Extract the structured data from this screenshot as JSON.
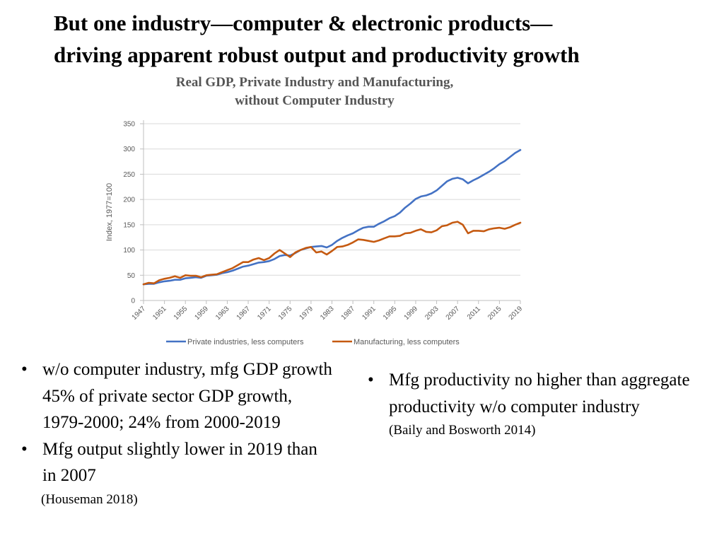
{
  "slide": {
    "title_line1": "But one industry—computer & electronic products—",
    "title_line2": "driving apparent robust output and productivity growth"
  },
  "chart_data": {
    "type": "line",
    "title_line1": "Real GDP, Private Industry and Manufacturing,",
    "title_line2": "without Computer Industry",
    "ylabel": "Index, 1977=100",
    "xlabel": "",
    "ylim": [
      0,
      350
    ],
    "yticks": [
      0,
      50,
      100,
      150,
      200,
      250,
      300,
      350
    ],
    "xlim": [
      1947,
      2019
    ],
    "xticks": [
      1947,
      1951,
      1955,
      1959,
      1963,
      1967,
      1971,
      1975,
      1979,
      1983,
      1987,
      1991,
      1995,
      1999,
      2003,
      2007,
      2011,
      2015,
      2019
    ],
    "legend_position": "bottom",
    "grid": true,
    "x": [
      1947,
      1948,
      1949,
      1950,
      1951,
      1952,
      1953,
      1954,
      1955,
      1956,
      1957,
      1958,
      1959,
      1960,
      1961,
      1962,
      1963,
      1964,
      1965,
      1966,
      1967,
      1968,
      1969,
      1970,
      1971,
      1972,
      1973,
      1974,
      1975,
      1976,
      1977,
      1978,
      1979,
      1980,
      1981,
      1982,
      1983,
      1984,
      1985,
      1986,
      1987,
      1988,
      1989,
      1990,
      1991,
      1992,
      1993,
      1994,
      1995,
      1996,
      1997,
      1998,
      1999,
      2000,
      2001,
      2002,
      2003,
      2004,
      2005,
      2006,
      2007,
      2008,
      2009,
      2010,
      2011,
      2012,
      2013,
      2014,
      2015,
      2016,
      2017,
      2018,
      2019
    ],
    "series": [
      {
        "name": "Private industries, less computers",
        "color": "#4472C4",
        "values": [
          32,
          33,
          33,
          36,
          38,
          39,
          41,
          41,
          44,
          45,
          46,
          45,
          49,
          50,
          51,
          54,
          56,
          59,
          63,
          67,
          69,
          72,
          75,
          76,
          78,
          82,
          88,
          90,
          89,
          94,
          100,
          103,
          106,
          107,
          108,
          105,
          110,
          118,
          124,
          129,
          133,
          139,
          144,
          146,
          146,
          152,
          157,
          163,
          167,
          174,
          184,
          192,
          201,
          206,
          208,
          212,
          218,
          227,
          236,
          241,
          243,
          240,
          232,
          238,
          243,
          249,
          255,
          262,
          270,
          276,
          284,
          292,
          298
        ]
      },
      {
        "name": "Manufacturing, less computers",
        "color": "#C55A11",
        "values": [
          32,
          35,
          34,
          40,
          43,
          45,
          48,
          45,
          50,
          49,
          49,
          46,
          50,
          51,
          52,
          56,
          60,
          64,
          70,
          76,
          76,
          81,
          84,
          80,
          84,
          93,
          100,
          93,
          86,
          95,
          100,
          104,
          106,
          95,
          97,
          91,
          98,
          106,
          107,
          110,
          115,
          121,
          120,
          118,
          116,
          119,
          123,
          127,
          127,
          128,
          133,
          134,
          138,
          141,
          136,
          135,
          139,
          147,
          149,
          154,
          156,
          150,
          133,
          138,
          138,
          137,
          141,
          143,
          144,
          142,
          145,
          150,
          154
        ]
      }
    ]
  },
  "bullets_left": {
    "items": [
      "w/o computer industry, mfg GDP growth 45% of private sector GDP growth, 1979-2000; 24% from 2000-2019",
      "Mfg output slightly lower in 2019 than in 2007"
    ],
    "citation": "(Houseman 2018)"
  },
  "bullets_right": {
    "items": [
      "Mfg productivity no higher than aggregate productivity w/o computer industry"
    ],
    "citation": "(Baily and Bosworth 2014)"
  },
  "glyphs": {
    "bullet": "•"
  }
}
